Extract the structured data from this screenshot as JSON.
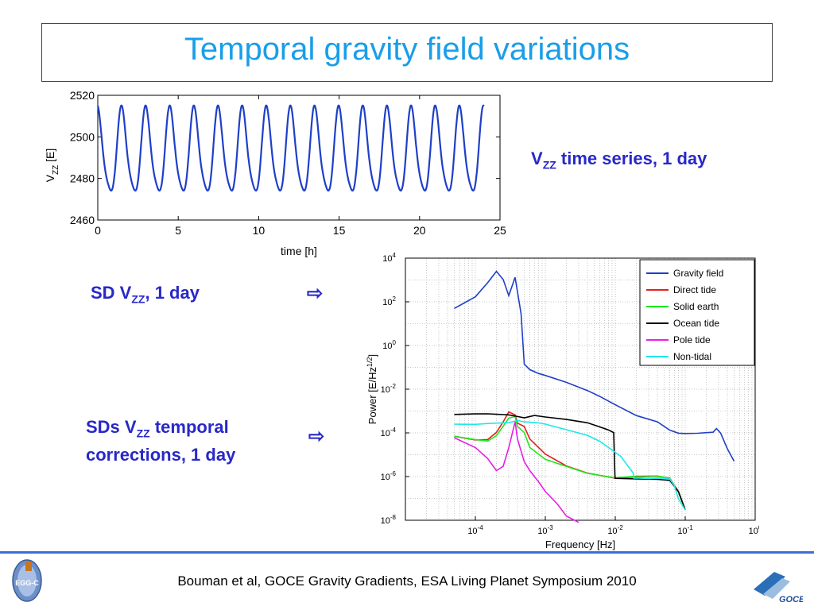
{
  "slide": {
    "title": "Temporal gravity field variations",
    "caption_timeseries": {
      "main": "V",
      "sub": "ZZ",
      "rest": " time series, 1 day"
    },
    "caption_sd": {
      "main": "SD V",
      "sub": "ZZ",
      "rest": ", 1 day"
    },
    "caption_sds_line1": {
      "main": "SDs V",
      "sub": "ZZ",
      "rest": " temporal"
    },
    "caption_sds_line2": "corrections, 1 day",
    "arrow_glyph": "⇨",
    "footer": "Bouman et al, GOCE Gravity Gradients, ESA Living Planet Symposium 2010",
    "logo_left_text": "EGG-C",
    "logo_right_text": "GOCE"
  },
  "chart_data": [
    {
      "type": "line",
      "xlabel": "time [h]",
      "ylabel_main": "V",
      "ylabel_sub": "ZZ",
      "ylabel_unit": " [E]",
      "xlim": [
        0,
        25
      ],
      "ylim": [
        2460,
        2520
      ],
      "x_ticks": [
        "0",
        "5",
        "10",
        "15",
        "20",
        "25"
      ],
      "y_ticks": [
        "2460",
        "2480",
        "2500",
        "2520"
      ],
      "grid": false,
      "series": [
        {
          "color": "#1f3fc8",
          "x_start": 0,
          "x_end": 24,
          "orbit_period_h": 1.5,
          "mean": 2492,
          "amplitude": 20,
          "secondary_bump": 7
        }
      ]
    },
    {
      "type": "line",
      "xlabel": "Frequency [Hz]",
      "ylabel": "Power [E/Hz",
      "ylabel_exp": "1/2",
      "ylabel_close": "]",
      "x_scale": "log",
      "y_scale": "log",
      "xlim": [
        1e-05,
        1
      ],
      "ylim": [
        1e-08,
        10000
      ],
      "x_ticks": [
        {
          "base": "10",
          "exp": "-4",
          "v": 0.0001
        },
        {
          "base": "10",
          "exp": "-3",
          "v": 0.001
        },
        {
          "base": "10",
          "exp": "-2",
          "v": 0.01
        },
        {
          "base": "10",
          "exp": "-1",
          "v": 0.1
        },
        {
          "base": "10",
          "exp": "0",
          "v": 1
        }
      ],
      "y_ticks": [
        {
          "base": "10",
          "exp": "-8",
          "v": 1e-08
        },
        {
          "base": "10",
          "exp": "-6",
          "v": 1e-06
        },
        {
          "base": "10",
          "exp": "-4",
          "v": 0.0001
        },
        {
          "base": "10",
          "exp": "-2",
          "v": 0.01
        },
        {
          "base": "10",
          "exp": "0",
          "v": 1
        },
        {
          "base": "10",
          "exp": "2",
          "v": 100
        },
        {
          "base": "10",
          "exp": "4",
          "v": 10000
        }
      ],
      "grid": true,
      "legend": "top-right",
      "series": [
        {
          "name": "Gravity field",
          "color": "#1f3fc8",
          "points": [
            [
              5e-05,
              50
            ],
            [
              0.0001,
              180
            ],
            [
              0.00015,
              800
            ],
            [
              0.0002,
              2500
            ],
            [
              0.00025,
              1000
            ],
            [
              0.0003,
              180
            ],
            [
              0.00037,
              1300
            ],
            [
              0.00045,
              30
            ],
            [
              0.0005,
              0.15
            ],
            [
              0.0006,
              0.08
            ],
            [
              0.0008,
              0.05
            ],
            [
              0.001,
              0.04
            ],
            [
              0.002,
              0.02
            ],
            [
              0.004,
              0.009
            ],
            [
              0.006,
              0.005
            ],
            [
              0.01,
              0.002
            ],
            [
              0.02,
              0.0006
            ],
            [
              0.04,
              0.0003
            ],
            [
              0.06,
              0.00013
            ],
            [
              0.08,
              0.0001
            ],
            [
              0.1,
              0.0001
            ],
            [
              0.15,
              0.0001
            ],
            [
              0.2,
              0.0001
            ],
            [
              0.25,
              0.0001
            ],
            [
              0.28,
              0.00015
            ],
            [
              0.32,
              0.0001
            ],
            [
              0.4,
              2e-05
            ],
            [
              0.5,
              5e-06
            ]
          ]
        },
        {
          "name": "Direct tide",
          "color": "#e81e1e",
          "points": [
            [
              5e-05,
              7e-05
            ],
            [
              0.0001,
              5e-05
            ],
            [
              0.00015,
              5e-05
            ],
            [
              0.0002,
              0.0001
            ],
            [
              0.00025,
              0.0003
            ],
            [
              0.0003,
              0.0009
            ],
            [
              0.00037,
              0.0007
            ],
            [
              0.0004,
              0.0003
            ],
            [
              0.0005,
              0.0002
            ],
            [
              0.0006,
              5e-05
            ],
            [
              0.001,
              1e-05
            ],
            [
              0.002,
              3e-06
            ],
            [
              0.004,
              1.5e-06
            ],
            [
              0.01,
              9e-07
            ],
            [
              0.02,
              1e-06
            ],
            [
              0.04,
              1e-06
            ],
            [
              0.06,
              8e-07
            ],
            [
              0.08,
              2e-07
            ],
            [
              0.1,
              3e-08
            ]
          ]
        },
        {
          "name": "Solid earth",
          "color": "#1ee81e",
          "points": [
            [
              5e-05,
              7e-05
            ],
            [
              0.0001,
              5e-05
            ],
            [
              0.00015,
              4e-05
            ],
            [
              0.0002,
              7e-05
            ],
            [
              0.00025,
              0.0002
            ],
            [
              0.0003,
              0.0005
            ],
            [
              0.00037,
              0.0006
            ],
            [
              0.0004,
              0.0002
            ],
            [
              0.0005,
              0.0001
            ],
            [
              0.0006,
              2e-05
            ],
            [
              0.001,
              6e-06
            ],
            [
              0.002,
              3e-06
            ],
            [
              0.004,
              1.5e-06
            ],
            [
              0.01,
              9e-07
            ],
            [
              0.02,
              1e-06
            ],
            [
              0.04,
              1e-06
            ],
            [
              0.06,
              8e-07
            ],
            [
              0.08,
              2e-07
            ],
            [
              0.1,
              3e-08
            ]
          ]
        },
        {
          "name": "Ocean tide",
          "color": "#000000",
          "points": [
            [
              5e-05,
              0.0007
            ],
            [
              0.0001,
              0.0007
            ],
            [
              0.00015,
              0.0007
            ],
            [
              0.0002,
              0.0007
            ],
            [
              0.0003,
              0.0007
            ],
            [
              0.0004,
              0.0006
            ],
            [
              0.0005,
              0.0005
            ],
            [
              0.0007,
              0.0006
            ],
            [
              0.001,
              0.0005
            ],
            [
              0.002,
              0.0004
            ],
            [
              0.004,
              0.0003
            ],
            [
              0.006,
              0.0002
            ],
            [
              0.008,
              0.00014
            ],
            [
              0.0095,
              0.0001
            ],
            [
              0.0099,
              1e-06
            ],
            [
              0.01,
              8e-07
            ],
            [
              0.02,
              8e-07
            ],
            [
              0.04,
              8e-07
            ],
            [
              0.06,
              7e-07
            ],
            [
              0.08,
              2e-07
            ],
            [
              0.1,
              3e-08
            ]
          ]
        },
        {
          "name": "Pole tide",
          "color": "#e81ee8",
          "points": [
            [
              5e-05,
              6e-05
            ],
            [
              0.0001,
              2e-05
            ],
            [
              0.00013,
              1e-05
            ],
            [
              0.00015,
              7e-06
            ],
            [
              0.0002,
              2e-06
            ],
            [
              0.00025,
              3e-06
            ],
            [
              0.0003,
              2e-05
            ],
            [
              0.00037,
              0.0003
            ],
            [
              0.0004,
              5e-05
            ],
            [
              0.0005,
              5e-06
            ],
            [
              0.0006,
              2e-06
            ],
            [
              0.0008,
              6e-07
            ],
            [
              0.001,
              2e-07
            ],
            [
              0.0015,
              5e-08
            ],
            [
              0.002,
              1.5e-08
            ],
            [
              0.003,
              8e-09
            ]
          ]
        },
        {
          "name": "Non-tidal",
          "color": "#1ee8e8",
          "points": [
            [
              5e-05,
              0.00025
            ],
            [
              0.0001,
              0.00024
            ],
            [
              0.00015,
              0.00028
            ],
            [
              0.0002,
              0.0003
            ],
            [
              0.0003,
              0.0003
            ],
            [
              0.0004,
              0.00035
            ],
            [
              0.0005,
              0.0003
            ],
            [
              0.0008,
              0.00028
            ],
            [
              0.001,
              0.00026
            ],
            [
              0.002,
              0.00015
            ],
            [
              0.004,
              8e-05
            ],
            [
              0.006,
              4e-05
            ],
            [
              0.008,
              2e-05
            ],
            [
              0.012,
              8e-06
            ],
            [
              0.018,
              1.5e-06
            ],
            [
              0.0185,
              9e-07
            ],
            [
              0.02,
              9e-07
            ],
            [
              0.03,
              8e-07
            ],
            [
              0.04,
              8e-07
            ],
            [
              0.05,
              8e-07
            ],
            [
              0.06,
              8e-07
            ],
            [
              0.07,
              4e-07
            ],
            [
              0.08,
              1e-07
            ],
            [
              0.1,
              3e-08
            ]
          ]
        }
      ]
    }
  ]
}
